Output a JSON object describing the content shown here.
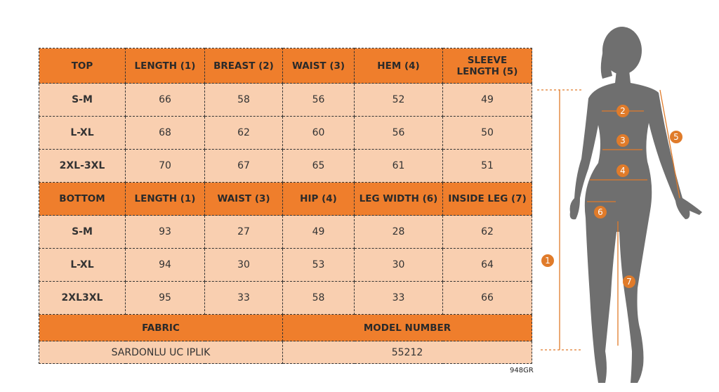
{
  "top_table": {
    "header": [
      "TOP",
      "LENGTH (1)",
      "BREAST (2)",
      "WAIST (3)",
      "HEM (4)",
      "SLEEVE LENGTH (5)"
    ],
    "rows": [
      [
        "S-M",
        "66",
        "58",
        "56",
        "52",
        "49"
      ],
      [
        "L-XL",
        "68",
        "62",
        "60",
        "56",
        "50"
      ],
      [
        "2XL-3XL",
        "70",
        "67",
        "65",
        "61",
        "51"
      ]
    ]
  },
  "bottom_table": {
    "header": [
      "BOTTOM",
      "LENGTH (1)",
      "WAIST (3)",
      "HIP (4)",
      "LEG WIDTH (6)",
      "INSIDE LEG (7)"
    ],
    "rows": [
      [
        "S-M",
        "93",
        "27",
        "49",
        "28",
        "62"
      ],
      [
        "L-XL",
        "94",
        "30",
        "53",
        "30",
        "64"
      ],
      [
        "2XL3XL",
        "95",
        "33",
        "58",
        "33",
        "66"
      ]
    ]
  },
  "fabric": {
    "label": "FABRIC",
    "value": "SARDONLU UC IPLIK"
  },
  "model_number": {
    "label": "MODEL NUMBER",
    "value": "55212"
  },
  "code": "948GR",
  "figure_markers": [
    "1",
    "2",
    "3",
    "4",
    "5",
    "6",
    "7"
  ]
}
